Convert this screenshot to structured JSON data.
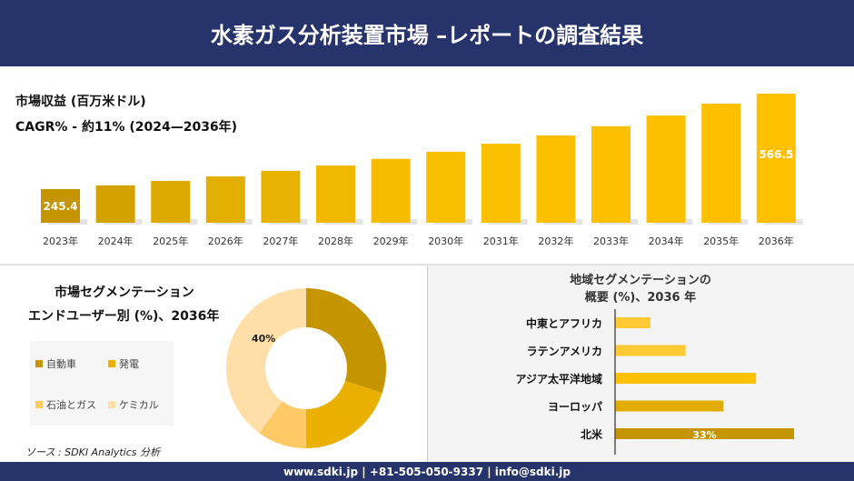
{
  "header": {
    "title": "水素ガス分析装置市場 –レポートの調査結果"
  },
  "revenue": {
    "title": "市場収益 (百万米ドル)",
    "cagr": "CAGR% - 約11% (2024—2036年)"
  },
  "segment": {
    "title_line1": "市場セグメンテーション",
    "title_line2": "エンドユーザー別 (%)、2036年"
  },
  "region": {
    "title_line1": "地域セグメンテーションの",
    "title_line2": "概要 (%)、2036 年"
  },
  "source": "ソース : SDKI Analytics 分析",
  "footer": {
    "contact": "www.sdki.jp | +81-505-050-9337 | info@sdki.jp"
  },
  "colors": {
    "header_bg": "#27336b",
    "gold_dark": "#c49500",
    "gold": "#e6b000",
    "yellow": "#ffc000",
    "light": "#ffd98f"
  },
  "chart_data": [
    {
      "type": "bar",
      "categories": [
        "2023年",
        "2024年",
        "2025年",
        "2026年",
        "2027年",
        "2028年",
        "2029年",
        "2030年",
        "2031年",
        "2032年",
        "2033年",
        "2034年",
        "2035年",
        "2036年"
      ],
      "values": [
        245.4,
        258,
        273,
        288,
        307,
        325,
        347,
        371,
        398,
        426,
        457,
        493,
        533,
        566.5
      ],
      "data_labels": {
        "0": "245.4",
        "13": "566.5"
      },
      "ylim": [
        132,
        600
      ]
    },
    {
      "type": "pie",
      "hole": true,
      "categories": [
        "自動車",
        "発電",
        "石油とガス",
        "ケミカル"
      ],
      "values": [
        30,
        20,
        10,
        40
      ],
      "colors": [
        "#c49500",
        "#e9b000",
        "#ffc966",
        "#ffdfa8"
      ],
      "data_labels": {
        "3": "40%"
      },
      "legend": "left"
    },
    {
      "type": "bar",
      "orientation": "horizontal",
      "categories": [
        "中東とアフリカ",
        "ラテンアメリカ",
        "アジア太平洋地域",
        "ヨーロッパ",
        "北米"
      ],
      "values": [
        6.5,
        13,
        26,
        20,
        33
      ],
      "colors": [
        "#ffc933",
        "#ffc933",
        "#ffc000",
        "#e2ac00",
        "#c49500"
      ],
      "data_labels": {
        "4": "33%"
      }
    }
  ]
}
